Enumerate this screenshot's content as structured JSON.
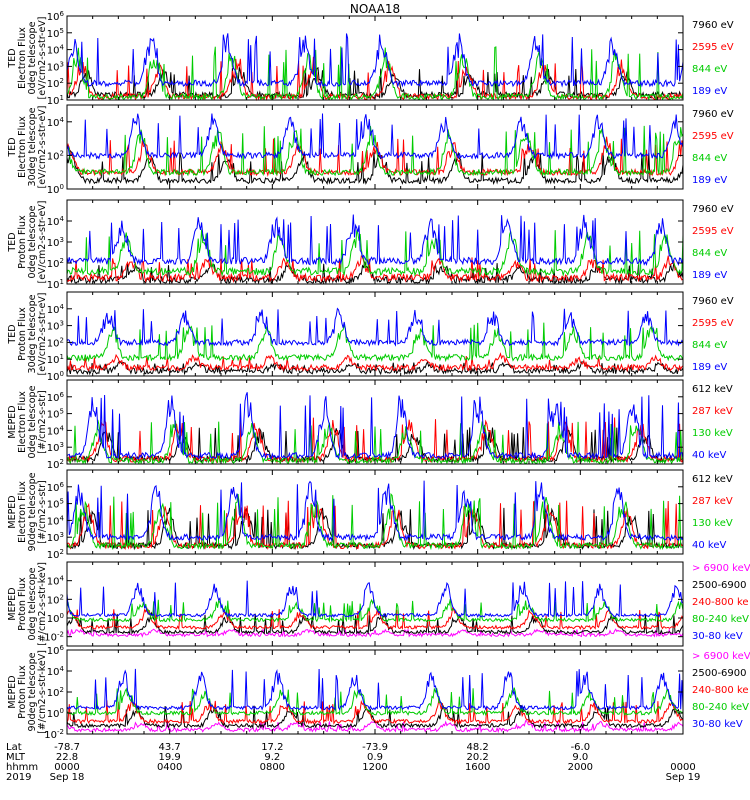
{
  "title": "NOAA18",
  "row_labels": [
    "Lat",
    "MLT",
    "hhmm",
    "2019"
  ],
  "chart_data": [
    {
      "type": "line",
      "panel": 1,
      "ylabel": [
        "TED",
        "Electron Flux",
        "0deg telescope",
        "[eV/cm2-s-str-eV]"
      ],
      "yscale": "log",
      "ylim_exp": [
        1,
        6
      ],
      "ytick_exps": [
        1,
        2,
        3,
        4,
        5,
        6
      ],
      "series": [
        {
          "name": "7960 eV",
          "color": "#000000",
          "base": 1.3,
          "peak": 2.9
        },
        {
          "name": "2595 eV",
          "color": "#ff0000",
          "base": 1.2,
          "peak": 3.5
        },
        {
          "name": "844 eV",
          "color": "#00cc00",
          "base": 1.2,
          "peak": 4.2
        },
        {
          "name": "189 eV",
          "color": "#0000ff",
          "base": 2.0,
          "peak": 5.0
        }
      ]
    },
    {
      "type": "line",
      "panel": 2,
      "ylabel": [
        "TED",
        "Electron Flux",
        "30deg telescope",
        "[eV/cm2-s-str-eV]"
      ],
      "yscale": "log",
      "ylim_exp": [
        0,
        5
      ],
      "ytick_exps": [
        0,
        2,
        4
      ],
      "series": [
        {
          "name": "7960 eV",
          "color": "#000000",
          "base": 0.5,
          "peak": 2.2
        },
        {
          "name": "2595 eV",
          "color": "#ff0000",
          "base": 1.0,
          "peak": 3.0
        },
        {
          "name": "844 eV",
          "color": "#00cc00",
          "base": 1.0,
          "peak": 3.8
        },
        {
          "name": "189 eV",
          "color": "#0000ff",
          "base": 2.0,
          "peak": 4.6
        }
      ]
    },
    {
      "type": "line",
      "panel": 3,
      "ylabel": [
        "TED",
        "Proton Flux",
        "0deg telescope",
        "[eV/cm2-s-str-eV]"
      ],
      "yscale": "log",
      "ylim_exp": [
        1,
        5
      ],
      "ytick_exps": [
        1,
        2,
        3,
        4
      ],
      "series": [
        {
          "name": "7960 eV",
          "color": "#000000",
          "base": 1.2,
          "peak": 2.0
        },
        {
          "name": "2595 eV",
          "color": "#ff0000",
          "base": 1.3,
          "peak": 2.3
        },
        {
          "name": "844 eV",
          "color": "#00cc00",
          "base": 1.6,
          "peak": 3.6
        },
        {
          "name": "189 eV",
          "color": "#0000ff",
          "base": 2.1,
          "peak": 4.3
        }
      ]
    },
    {
      "type": "line",
      "panel": 4,
      "ylabel": [
        "TED",
        "Proton Flux",
        "30deg telescope",
        "[eV/cm2-s-str-eV]"
      ],
      "yscale": "log",
      "ylim_exp": [
        0,
        5
      ],
      "ytick_exps": [
        0,
        1,
        2,
        3,
        4
      ],
      "series": [
        {
          "name": "7960 eV",
          "color": "#000000",
          "base": 0.3,
          "peak": 0.8
        },
        {
          "name": "2595 eV",
          "color": "#ff0000",
          "base": 0.5,
          "peak": 1.2
        },
        {
          "name": "844 eV",
          "color": "#00cc00",
          "base": 1.1,
          "peak": 3.2
        },
        {
          "name": "189 eV",
          "color": "#0000ff",
          "base": 2.0,
          "peak": 4.0
        }
      ]
    },
    {
      "type": "line",
      "panel": 5,
      "ylabel": [
        "MEPED",
        "Electron Flux",
        "0deg telescope",
        "[#/cm2-s-str]"
      ],
      "yscale": "log",
      "ylim_exp": [
        2,
        7
      ],
      "ytick_exps": [
        2,
        3,
        4,
        5,
        6
      ],
      "series": [
        {
          "name": "612 keV",
          "color": "#000000",
          "base": 2.3,
          "peak": 4.2
        },
        {
          "name": "287 keV",
          "color": "#ff0000",
          "base": 2.3,
          "peak": 4.8
        },
        {
          "name": "130 keV",
          "color": "#00cc00",
          "base": 2.2,
          "peak": 4.6
        },
        {
          "name": "40 keV",
          "color": "#0000ff",
          "base": 2.5,
          "peak": 6.2
        }
      ]
    },
    {
      "type": "line",
      "panel": 6,
      "ylabel": [
        "MEPED",
        "Electron Flux",
        "90deg telescope",
        "[#/cm2-s-str]"
      ],
      "yscale": "log",
      "ylim_exp": [
        2,
        7
      ],
      "ytick_exps": [
        2,
        3,
        4,
        5,
        6
      ],
      "series": [
        {
          "name": "612 keV",
          "color": "#000000",
          "base": 2.5,
          "peak": 4.8
        },
        {
          "name": "287 keV",
          "color": "#ff0000",
          "base": 2.5,
          "peak": 5.2
        },
        {
          "name": "130 keV",
          "color": "#00cc00",
          "base": 2.5,
          "peak": 5.6
        },
        {
          "name": "40 keV",
          "color": "#0000ff",
          "base": 3.0,
          "peak": 6.4
        }
      ]
    },
    {
      "type": "line",
      "panel": 7,
      "ylabel": [
        "MEPED",
        "Proton Flux",
        "0deg telescope",
        "[#/cm2-s-str-keV]"
      ],
      "yscale": "log",
      "ylim_exp": [
        -3,
        6
      ],
      "ytick_exps": [
        -2,
        0,
        2,
        4
      ],
      "series": [
        {
          "name": "> 6900 keV",
          "color": "#ff00ff",
          "base": -1.8,
          "peak": -1.2
        },
        {
          "name": "2500-6900",
          "color": "#000000",
          "base": -1.5,
          "peak": 0.5
        },
        {
          "name": "240-800 ke",
          "color": "#ff0000",
          "base": -1.0,
          "peak": 1.0
        },
        {
          "name": "80-240 keV",
          "color": "#00cc00",
          "base": -0.2,
          "peak": 2.0
        },
        {
          "name": "30-80 keV",
          "color": "#0000ff",
          "base": 0.3,
          "peak": 4.0
        }
      ]
    },
    {
      "type": "line",
      "panel": 8,
      "ylabel": [
        "MEPED",
        "Proton Flux",
        "90deg telescope",
        "[#/cm2-s-str-keV]"
      ],
      "yscale": "log",
      "ylim_exp": [
        -2,
        6
      ],
      "ytick_exps": [
        -2,
        0,
        2,
        4,
        6
      ],
      "series": [
        {
          "name": "> 6900 keV",
          "color": "#ff00ff",
          "base": -1.6,
          "peak": -0.8
        },
        {
          "name": "2500-6900",
          "color": "#000000",
          "base": -1.2,
          "peak": 0.8
        },
        {
          "name": "240-800 ke",
          "color": "#ff0000",
          "base": -0.8,
          "peak": 1.2
        },
        {
          "name": "80-240 keV",
          "color": "#00cc00",
          "base": 0.0,
          "peak": 2.4
        },
        {
          "name": "30-80 keV",
          "color": "#0000ff",
          "base": 0.5,
          "peak": 4.2
        }
      ]
    }
  ],
  "x_axis": {
    "ticks": [
      {
        "hhmm": "0000",
        "lat": "-78.7",
        "mlt": "22.8",
        "date": "Sep 18",
        "hours": 0
      },
      {
        "hhmm": "0400",
        "lat": "43.7",
        "mlt": "19.9",
        "date": "",
        "hours": 4
      },
      {
        "hhmm": "0800",
        "lat": "17.2",
        "mlt": "9.2",
        "date": "",
        "hours": 8
      },
      {
        "hhmm": "1200",
        "lat": "-73.9",
        "mlt": "0.9",
        "date": "",
        "hours": 12
      },
      {
        "hhmm": "1600",
        "lat": "48.2",
        "mlt": "20.2",
        "date": "",
        "hours": 16
      },
      {
        "hhmm": "2000",
        "lat": "-6.0",
        "mlt": "9.0",
        "date": "",
        "hours": 20
      },
      {
        "hhmm": "0000",
        "lat": "",
        "mlt": "",
        "date": "Sep 19",
        "hours": 24
      }
    ],
    "xlim_hours": [
      0,
      24
    ]
  }
}
